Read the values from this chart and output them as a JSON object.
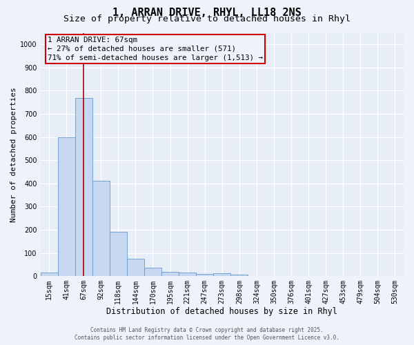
{
  "title_line1": "1, ARRAN DRIVE, RHYL, LL18 2NS",
  "title_line2": "Size of property relative to detached houses in Rhyl",
  "xlabel": "Distribution of detached houses by size in Rhyl",
  "ylabel": "Number of detached properties",
  "bin_labels": [
    "15sqm",
    "41sqm",
    "67sqm",
    "92sqm",
    "118sqm",
    "144sqm",
    "170sqm",
    "195sqm",
    "221sqm",
    "247sqm",
    "273sqm",
    "298sqm",
    "324sqm",
    "350sqm",
    "376sqm",
    "401sqm",
    "427sqm",
    "453sqm",
    "479sqm",
    "504sqm",
    "530sqm"
  ],
  "bar_heights": [
    15,
    600,
    770,
    410,
    190,
    75,
    37,
    18,
    15,
    10,
    12,
    8,
    0,
    0,
    0,
    0,
    0,
    0,
    0,
    0,
    0
  ],
  "bar_color": "#c5d8f0",
  "bar_edge_color": "#6699cc",
  "ylim": [
    0,
    1050
  ],
  "yticks": [
    0,
    100,
    200,
    300,
    400,
    500,
    600,
    700,
    800,
    900,
    1000
  ],
  "property_size_label": "67sqm",
  "vline_color": "#aa0000",
  "annotation_line1": "1 ARRAN DRIVE: 67sqm",
  "annotation_line2": "← 27% of detached houses are smaller (571)",
  "annotation_line3": "71% of semi-detached houses are larger (1,513) →",
  "annotation_box_color": "#cc0000",
  "footnote1": "Contains HM Land Registry data © Crown copyright and database right 2025.",
  "footnote2": "Contains public sector information licensed under the Open Government Licence v3.0.",
  "background_color": "#eef2fb",
  "plot_bg_color": "#e8eef8",
  "grid_color": "#ffffff",
  "title_fontsize": 11,
  "subtitle_fontsize": 9.5,
  "tick_fontsize": 7,
  "ylabel_fontsize": 8,
  "xlabel_fontsize": 8.5
}
